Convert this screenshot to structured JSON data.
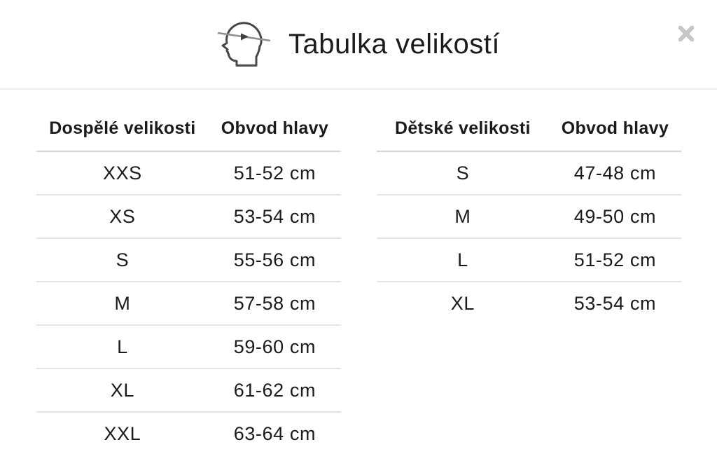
{
  "modal": {
    "title": "Tabulka velikostí"
  },
  "icons": {
    "header_icon": "head-circumference-icon",
    "close_icon": "close-icon"
  },
  "colors": {
    "text": "#1b1b1b",
    "divider_top": "#ededed",
    "thead_divider": "#d5d5d5",
    "row_divider": "#e3e3e3",
    "close": "#c7c7c7",
    "icon_outline": "#484848",
    "icon_tape": "#8f8f8f",
    "bg": "#ffffff"
  },
  "tables": [
    {
      "name": "adult-sizes",
      "columns": [
        "Dospělé velikosti",
        "Obvod hlavy"
      ],
      "rows": [
        [
          "XXS",
          "51-52 cm"
        ],
        [
          "XS",
          "53-54 cm"
        ],
        [
          "S",
          "55-56 cm"
        ],
        [
          "M",
          "57-58 cm"
        ],
        [
          "L",
          "59-60 cm"
        ],
        [
          "XL",
          "61-62 cm"
        ],
        [
          "XXL",
          "63-64 cm"
        ]
      ]
    },
    {
      "name": "children-sizes",
      "columns": [
        "Dětské velikosti",
        "Obvod hlavy"
      ],
      "rows": [
        [
          "S",
          "47-48 cm"
        ],
        [
          "M",
          "49-50 cm"
        ],
        [
          "L",
          "51-52 cm"
        ],
        [
          "XL",
          "53-54 cm"
        ]
      ]
    }
  ]
}
